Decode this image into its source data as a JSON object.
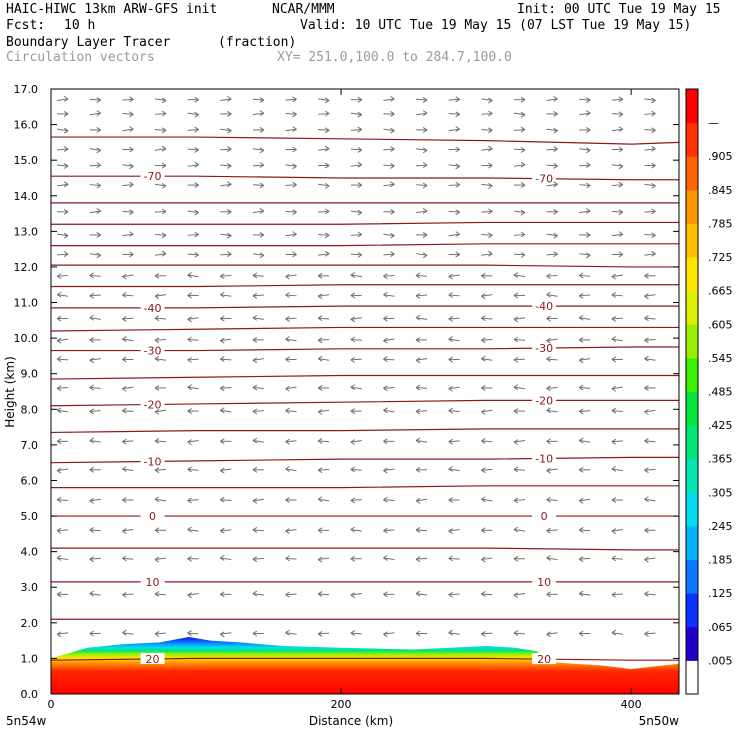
{
  "header": {
    "model": "HAIC-HIWC 13km ARW-GFS init",
    "org": "NCAR/MMM",
    "init": "Init: 00 UTC Tue 19 May 15",
    "fcst_label": "Fcst:",
    "fcst_value": "10 h",
    "valid": "Valid: 10 UTC Tue 19 May 15 (07 LST Tue 19 May 15)",
    "field1_name": "Boundary Layer Tracer",
    "field1_units": "(fraction)",
    "field2_name": "Circulation vectors",
    "xsec_line": "XY= 251.0,100.0 to 284.7,100.0"
  },
  "chart_data": {
    "type": "heatmap",
    "title": "Boundary Layer Tracer",
    "xlabel": "Distance (km)",
    "ylabel": "Height (km)",
    "xlim": [
      0,
      433
    ],
    "ylim": [
      0,
      17
    ],
    "x_ticks": [
      0,
      200,
      400
    ],
    "x_tick_labels": [
      "0",
      "200",
      "400"
    ],
    "x_end_labels": {
      "left": "5n54w",
      "right": "5n50w"
    },
    "y_ticks": [
      0,
      1,
      2,
      3,
      4,
      5,
      6,
      7,
      8,
      9,
      10,
      11,
      12,
      13,
      14,
      15,
      16,
      17
    ],
    "y_tick_labels": [
      "0.0",
      "1.0",
      "2.0",
      "3.0",
      "4.0",
      "5.0",
      "6.0",
      "7.0",
      "8.0",
      "9.0",
      "10.0",
      "11.0",
      "12.0",
      "13.0",
      "14.0",
      "15.0",
      "16.0",
      "17.0"
    ],
    "colorbar": {
      "labels": [
        ".005",
        ".065",
        ".125",
        ".185",
        ".245",
        ".305",
        ".365",
        ".425",
        ".485",
        ".545",
        ".605",
        ".665",
        ".725",
        ".785",
        ".845",
        ".905",
        "—"
      ],
      "colors": [
        "#ffffff",
        "#1e00c8",
        "#0a32ff",
        "#0a78ff",
        "#00b4ff",
        "#00dcf0",
        "#00e6b4",
        "#00e678",
        "#00e63c",
        "#3cf000",
        "#96f000",
        "#dcf000",
        "#ffe600",
        "#ffbe00",
        "#ff9600",
        "#ff6400",
        "#ff3200",
        "#ff0000"
      ]
    },
    "tracer_top_km": {
      "x": [
        0,
        25,
        50,
        75,
        95,
        110,
        130,
        160,
        200,
        250,
        300,
        320,
        335,
        345,
        360,
        380,
        400,
        433
      ],
      "y": [
        1.0,
        1.3,
        1.4,
        1.45,
        1.6,
        1.5,
        1.45,
        1.35,
        1.3,
        1.25,
        1.35,
        1.3,
        1.2,
        0.9,
        0.85,
        0.8,
        0.7,
        0.85
      ]
    },
    "contour_series": [
      {
        "label": "-70",
        "x": [
          0,
          100,
          200,
          300,
          400,
          433
        ],
        "y": [
          14.55,
          14.55,
          14.5,
          14.5,
          14.45,
          14.45
        ]
      },
      {
        "label": "-40",
        "x": [
          0,
          100,
          200,
          300,
          400,
          433
        ],
        "y": [
          10.85,
          10.85,
          10.9,
          10.9,
          10.9,
          10.9
        ]
      },
      {
        "label": "-30",
        "x": [
          0,
          100,
          200,
          300,
          400,
          433
        ],
        "y": [
          9.65,
          9.65,
          9.7,
          9.7,
          9.75,
          9.75
        ]
      },
      {
        "label": "-20",
        "x": [
          0,
          100,
          200,
          300,
          400,
          433
        ],
        "y": [
          8.1,
          8.15,
          8.2,
          8.25,
          8.25,
          8.25
        ]
      },
      {
        "label": "-10",
        "x": [
          0,
          100,
          200,
          300,
          400,
          433
        ],
        "y": [
          6.5,
          6.55,
          6.6,
          6.6,
          6.65,
          6.65
        ]
      },
      {
        "label": "0",
        "x": [
          0,
          100,
          200,
          300,
          400,
          433
        ],
        "y": [
          5.0,
          5.0,
          5.0,
          5.0,
          5.0,
          5.0
        ]
      },
      {
        "label": "10",
        "x": [
          0,
          100,
          200,
          300,
          400,
          433
        ],
        "y": [
          3.15,
          3.15,
          3.15,
          3.15,
          3.15,
          3.15
        ]
      },
      {
        "label": "20",
        "x": [
          0,
          100,
          200,
          300,
          400,
          433
        ],
        "y": [
          0.95,
          1.0,
          1.0,
          1.0,
          0.95,
          0.95
        ]
      },
      {
        "label": "",
        "x": [
          0,
          100,
          200,
          300,
          400,
          433
        ],
        "y": [
          15.65,
          15.65,
          15.6,
          15.55,
          15.45,
          15.5
        ]
      },
      {
        "label": "",
        "x": [
          0,
          100,
          200,
          300,
          400,
          433
        ],
        "y": [
          13.8,
          13.8,
          13.8,
          13.8,
          13.8,
          13.8
        ]
      },
      {
        "label": "",
        "x": [
          0,
          100,
          200,
          300,
          400,
          433
        ],
        "y": [
          13.2,
          13.2,
          13.2,
          13.25,
          13.25,
          13.25
        ]
      },
      {
        "label": "",
        "x": [
          0,
          100,
          200,
          300,
          400,
          433
        ],
        "y": [
          12.6,
          12.6,
          12.6,
          12.65,
          12.65,
          12.65
        ]
      },
      {
        "label": "",
        "x": [
          0,
          100,
          200,
          300,
          400,
          433
        ],
        "y": [
          12.05,
          12.05,
          12.05,
          12.05,
          12.0,
          12.0
        ]
      },
      {
        "label": "",
        "x": [
          0,
          100,
          200,
          300,
          400,
          433
        ],
        "y": [
          11.45,
          11.45,
          11.5,
          11.5,
          11.5,
          11.5
        ]
      },
      {
        "label": "",
        "x": [
          0,
          100,
          200,
          300,
          400,
          433
        ],
        "y": [
          10.2,
          10.25,
          10.3,
          10.3,
          10.3,
          10.3
        ]
      },
      {
        "label": "",
        "x": [
          0,
          100,
          200,
          300,
          400,
          433
        ],
        "y": [
          8.85,
          8.9,
          8.95,
          8.95,
          8.95,
          8.95
        ]
      },
      {
        "label": "",
        "x": [
          0,
          100,
          200,
          300,
          400,
          433
        ],
        "y": [
          7.35,
          7.4,
          7.4,
          7.45,
          7.45,
          7.45
        ]
      },
      {
        "label": "",
        "x": [
          0,
          100,
          200,
          300,
          400,
          433
        ],
        "y": [
          5.8,
          5.8,
          5.8,
          5.85,
          5.85,
          5.85
        ]
      },
      {
        "label": "",
        "x": [
          0,
          100,
          200,
          300,
          400,
          433
        ],
        "y": [
          4.1,
          4.1,
          4.1,
          4.1,
          4.05,
          4.05
        ]
      },
      {
        "label": "",
        "x": [
          0,
          100,
          200,
          300,
          400,
          433
        ],
        "y": [
          2.1,
          2.1,
          2.1,
          2.1,
          2.1,
          2.1
        ]
      }
    ],
    "vector_rows": [
      {
        "z": 16.7,
        "dir": "right"
      },
      {
        "z": 16.3,
        "dir": "right"
      },
      {
        "z": 15.85,
        "dir": "right"
      },
      {
        "z": 15.3,
        "dir": "right"
      },
      {
        "z": 14.85,
        "dir": "right"
      },
      {
        "z": 14.3,
        "dir": "right"
      },
      {
        "z": 13.55,
        "dir": "right"
      },
      {
        "z": 12.9,
        "dir": "right"
      },
      {
        "z": 12.35,
        "dir": "right"
      },
      {
        "z": 11.75,
        "dir": "left"
      },
      {
        "z": 11.2,
        "dir": "left"
      },
      {
        "z": 10.55,
        "dir": "left"
      },
      {
        "z": 9.95,
        "dir": "left"
      },
      {
        "z": 9.4,
        "dir": "left"
      },
      {
        "z": 8.6,
        "dir": "left"
      },
      {
        "z": 7.95,
        "dir": "left"
      },
      {
        "z": 7.1,
        "dir": "left"
      },
      {
        "z": 6.3,
        "dir": "left"
      },
      {
        "z": 5.45,
        "dir": "left"
      },
      {
        "z": 4.6,
        "dir": "left"
      },
      {
        "z": 3.8,
        "dir": "left"
      },
      {
        "z": 2.8,
        "dir": "left"
      },
      {
        "z": 1.7,
        "dir": "left"
      }
    ]
  }
}
